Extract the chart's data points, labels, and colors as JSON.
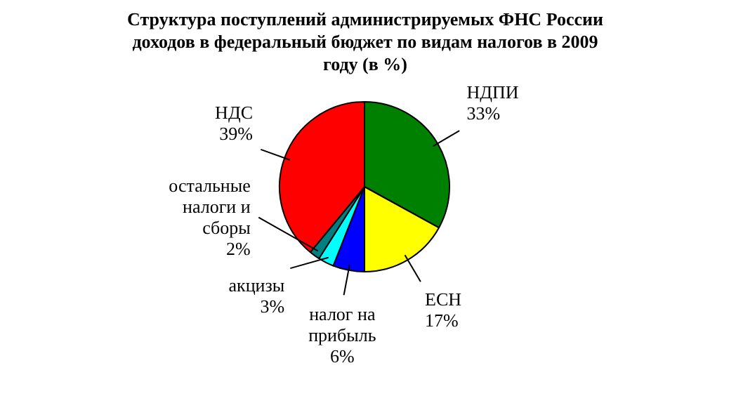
{
  "chart_data": {
    "type": "pie",
    "title": "Структура поступлений администрируемых ФНС России доходов в федеральный бюджет по видам налогов в 2009 году (в %)",
    "categories": [
      "НДПИ",
      "ЕСН",
      "налог на прибыль",
      "акцизы",
      "остальные налоги и сборы",
      "НДС"
    ],
    "values": [
      33,
      17,
      6,
      3,
      2,
      39
    ],
    "value_labels": [
      "33%",
      "17%",
      "6%",
      "3%",
      "2%",
      "39%"
    ],
    "colors": [
      "#008000",
      "#ffff00",
      "#0000ff",
      "#00ffff",
      "#008080",
      "#ff0000"
    ],
    "legend": false
  }
}
